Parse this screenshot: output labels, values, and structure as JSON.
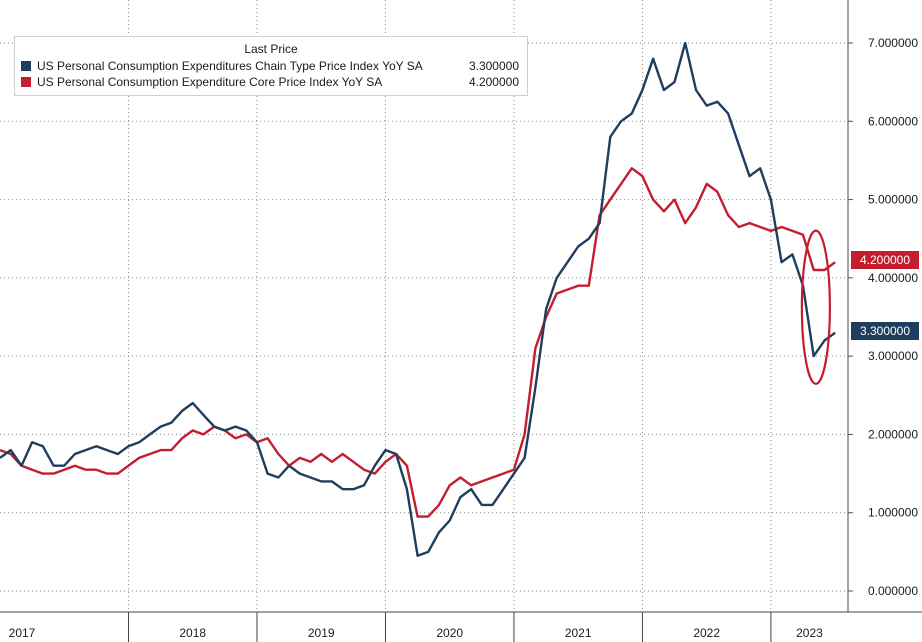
{
  "chart_data": {
    "type": "line",
    "legend": {
      "title": "Last Price",
      "placement": "top-left"
    },
    "series": [
      {
        "name": "US Personal Consumption Expenditures Chain Type Price Index YoY SA",
        "last_value": "3.300000",
        "color": "#1f3e5e",
        "x": [
          2017.0,
          2017.083,
          2017.167,
          2017.25,
          2017.333,
          2017.417,
          2017.5,
          2017.583,
          2017.667,
          2017.75,
          2017.833,
          2017.917,
          2018.0,
          2018.083,
          2018.167,
          2018.25,
          2018.333,
          2018.417,
          2018.5,
          2018.583,
          2018.667,
          2018.75,
          2018.833,
          2018.917,
          2019.0,
          2019.083,
          2019.167,
          2019.25,
          2019.333,
          2019.417,
          2019.5,
          2019.583,
          2019.667,
          2019.75,
          2019.833,
          2019.917,
          2020.0,
          2020.083,
          2020.167,
          2020.25,
          2020.333,
          2020.417,
          2020.5,
          2020.583,
          2020.667,
          2020.75,
          2020.833,
          2020.917,
          2021.0,
          2021.083,
          2021.167,
          2021.25,
          2021.333,
          2021.417,
          2021.5,
          2021.583,
          2021.667,
          2021.75,
          2021.833,
          2021.917,
          2022.0,
          2022.083,
          2022.167,
          2022.25,
          2022.333,
          2022.417,
          2022.5,
          2022.583,
          2022.667,
          2022.75,
          2022.833,
          2022.917,
          2023.0,
          2023.083,
          2023.167,
          2023.25,
          2023.333,
          2023.417,
          2023.5
        ],
        "y": [
          1.7,
          1.8,
          1.6,
          1.9,
          1.85,
          1.6,
          1.6,
          1.75,
          1.8,
          1.85,
          1.8,
          1.75,
          1.85,
          1.9,
          2.0,
          2.1,
          2.15,
          2.3,
          2.4,
          2.25,
          2.1,
          2.05,
          2.1,
          2.05,
          1.9,
          1.5,
          1.45,
          1.6,
          1.5,
          1.45,
          1.4,
          1.4,
          1.3,
          1.3,
          1.35,
          1.6,
          1.8,
          1.75,
          1.3,
          0.45,
          0.5,
          0.75,
          0.9,
          1.2,
          1.3,
          1.1,
          1.1,
          1.3,
          1.5,
          1.7,
          2.6,
          3.6,
          4.0,
          4.2,
          4.4,
          4.5,
          4.7,
          5.8,
          6.0,
          6.1,
          6.4,
          6.8,
          6.4,
          6.5,
          7.0,
          6.4,
          6.2,
          6.25,
          6.1,
          5.7,
          5.3,
          5.4,
          5.0,
          4.2,
          4.3,
          3.9,
          3.0,
          3.2,
          3.3
        ]
      },
      {
        "name": "US Personal Consumption Expenditure Core Price Index YoY SA",
        "last_value": "4.200000",
        "color": "#c31e2e",
        "x": [
          2017.0,
          2017.083,
          2017.167,
          2017.25,
          2017.333,
          2017.417,
          2017.5,
          2017.583,
          2017.667,
          2017.75,
          2017.833,
          2017.917,
          2018.0,
          2018.083,
          2018.167,
          2018.25,
          2018.333,
          2018.417,
          2018.5,
          2018.583,
          2018.667,
          2018.75,
          2018.833,
          2018.917,
          2019.0,
          2019.083,
          2019.167,
          2019.25,
          2019.333,
          2019.417,
          2019.5,
          2019.583,
          2019.667,
          2019.75,
          2019.833,
          2019.917,
          2020.0,
          2020.083,
          2020.167,
          2020.25,
          2020.333,
          2020.417,
          2020.5,
          2020.583,
          2020.667,
          2020.75,
          2020.833,
          2020.917,
          2021.0,
          2021.083,
          2021.167,
          2021.25,
          2021.333,
          2021.417,
          2021.5,
          2021.583,
          2021.667,
          2021.75,
          2021.833,
          2021.917,
          2022.0,
          2022.083,
          2022.167,
          2022.25,
          2022.333,
          2022.417,
          2022.5,
          2022.583,
          2022.667,
          2022.75,
          2022.833,
          2022.917,
          2023.0,
          2023.083,
          2023.167,
          2023.25,
          2023.333,
          2023.417,
          2023.5
        ],
        "y": [
          1.8,
          1.75,
          1.6,
          1.55,
          1.5,
          1.5,
          1.55,
          1.6,
          1.55,
          1.55,
          1.5,
          1.5,
          1.6,
          1.7,
          1.75,
          1.8,
          1.8,
          1.95,
          2.05,
          2.0,
          2.1,
          2.05,
          1.95,
          2.0,
          1.9,
          1.95,
          1.75,
          1.6,
          1.7,
          1.65,
          1.75,
          1.65,
          1.75,
          1.65,
          1.55,
          1.5,
          1.65,
          1.75,
          1.6,
          0.95,
          0.95,
          1.1,
          1.35,
          1.45,
          1.35,
          1.4,
          1.45,
          1.5,
          1.55,
          2.0,
          3.1,
          3.5,
          3.8,
          3.85,
          3.9,
          3.9,
          4.8,
          5.0,
          5.2,
          5.4,
          5.3,
          5.0,
          4.85,
          5.0,
          4.7,
          4.9,
          5.2,
          5.1,
          4.8,
          4.65,
          4.7,
          4.65,
          4.6,
          4.65,
          4.6,
          4.55,
          4.1,
          4.1,
          4.2
        ]
      }
    ],
    "ylim": [
      0,
      7.5
    ],
    "yticks": [
      "0.000000",
      "1.000000",
      "2.000000",
      "3.000000",
      "4.000000",
      "5.000000",
      "6.000000",
      "7.000000"
    ],
    "xlim": [
      2017.0,
      2023.6
    ],
    "xlabels": [
      "2017",
      "2018",
      "2019",
      "2020",
      "2021",
      "2022",
      "2023"
    ],
    "xlabel": "",
    "ylabel": "",
    "grid": true,
    "y_axis_side": "right",
    "annotation": {
      "shape": "ellipse",
      "color": "#c31e2e",
      "around_x": 2023.35,
      "y_range": [
        2.8,
        4.45
      ]
    }
  }
}
